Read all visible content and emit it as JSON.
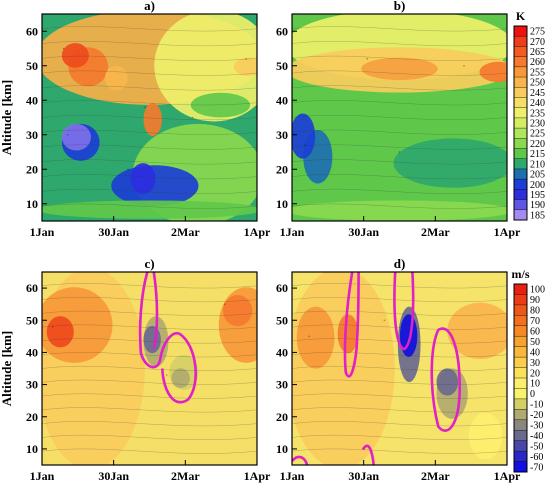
{
  "chart_data": [
    {
      "type": "heatmap",
      "panel": "a)",
      "ylabel": "Altitude [km]",
      "ylim": [
        5,
        65
      ],
      "yticks": [
        10,
        20,
        30,
        40,
        50,
        60
      ],
      "xtick_labels": [
        "1Jan",
        "30Jan",
        "2Mar",
        "1Apr"
      ],
      "colorbar": "K",
      "features": [
        {
          "x": 0.1,
          "y": 55,
          "value": 270
        },
        {
          "x": 0.12,
          "y": 30,
          "value": 190
        },
        {
          "x": 0.4,
          "y": 20,
          "value": 205
        },
        {
          "x": 0.48,
          "y": 38,
          "value": 260
        },
        {
          "x": 0.7,
          "y": 35,
          "value": 220
        },
        {
          "x": 0.95,
          "y": 52,
          "value": 250
        }
      ]
    },
    {
      "type": "heatmap",
      "panel": "b)",
      "ylim": [
        5,
        65
      ],
      "yticks": [
        10,
        20,
        30,
        40,
        50,
        60
      ],
      "xtick_labels": [
        "1Jan",
        "30Jan",
        "2Mar",
        "1Apr"
      ],
      "colorbar": "K",
      "features": [
        {
          "x": 0.06,
          "y": 27,
          "value": 200
        },
        {
          "x": 0.35,
          "y": 52,
          "value": 255
        },
        {
          "x": 0.8,
          "y": 50,
          "value": 260
        },
        {
          "x": 0.5,
          "y": 25,
          "value": 215
        }
      ]
    },
    {
      "type": "heatmap",
      "panel": "c)",
      "ylabel": "Altitude [km]",
      "ylim": [
        5,
        65
      ],
      "yticks": [
        10,
        20,
        30,
        40,
        50,
        60
      ],
      "xtick_labels": [
        "1Jan",
        "30Jan",
        "2Mar",
        "1Apr"
      ],
      "colorbar": "m/s",
      "features": [
        {
          "x": 0.05,
          "y": 48,
          "value": 70
        },
        {
          "x": 0.46,
          "y": 46,
          "value": -20
        },
        {
          "x": 0.58,
          "y": 33,
          "value": -10
        },
        {
          "x": 0.85,
          "y": 55,
          "value": 50
        }
      ]
    },
    {
      "type": "heatmap",
      "panel": "d)",
      "ylim": [
        5,
        65
      ],
      "yticks": [
        10,
        20,
        30,
        40,
        50,
        60
      ],
      "xtick_labels": [
        "1Jan",
        "30Jan",
        "2Mar",
        "1Apr"
      ],
      "colorbar": "m/s",
      "features": [
        {
          "x": 0.08,
          "y": 45,
          "value": 60
        },
        {
          "x": 0.43,
          "y": 50,
          "value": -60
        },
        {
          "x": 0.65,
          "y": 38,
          "value": -40
        },
        {
          "x": 0.4,
          "y": 5,
          "value": -10
        }
      ]
    }
  ],
  "colorbar_top": {
    "unit": "K",
    "labels": [
      "275",
      "270",
      "265",
      "260",
      "255",
      "250",
      "245",
      "240",
      "235",
      "230",
      "225",
      "220",
      "215",
      "210",
      "205",
      "200",
      "195",
      "190",
      "185"
    ],
    "colors": [
      "#ee1111",
      "#f03b1c",
      "#f35a24",
      "#f5792e",
      "#f7993a",
      "#f9b54c",
      "#f8cc5c",
      "#f6df66",
      "#eef06a",
      "#d3ee62",
      "#b0e65b",
      "#8ad94f",
      "#5fc84a",
      "#2fa86d",
      "#1d6fb0",
      "#1b3fd6",
      "#2d2ee0",
      "#5f56e6",
      "#a58af0"
    ]
  },
  "colorbar_bottom": {
    "unit": "m/s",
    "labels": [
      "100",
      "90",
      "80",
      "70",
      "60",
      "50",
      "40",
      "30",
      "20",
      "10",
      "0",
      "-10",
      "-20",
      "-30",
      "-40",
      "-50",
      "-60",
      "-70"
    ],
    "colors": [
      "#e8200f",
      "#ec3c14",
      "#ef5619",
      "#f2701e",
      "#f58a25",
      "#f7a12f",
      "#f9b83c",
      "#fbcd4a",
      "#fce05b",
      "#fdef6e",
      "#f7f46b",
      "#d4cf66",
      "#b0aa6f",
      "#8a8680",
      "#6a6a8f",
      "#4848a8",
      "#2828c8",
      "#1010e0"
    ]
  }
}
